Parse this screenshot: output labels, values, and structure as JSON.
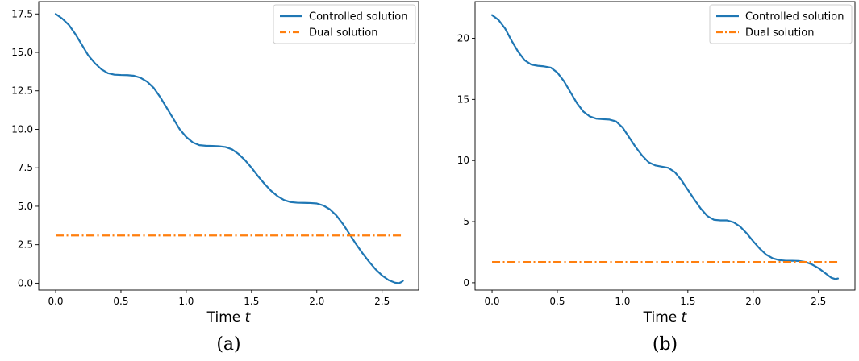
{
  "chart_data": [
    {
      "type": "line",
      "caption": "(a)",
      "xlabel": "Time",
      "xlabel_var": "t",
      "ylabel": "",
      "xlim": [
        -0.13,
        2.78
      ],
      "ylim": [
        -0.45,
        18.3
      ],
      "xticks": [
        0.0,
        0.5,
        1.0,
        1.5,
        2.0,
        2.5
      ],
      "xtick_labels": [
        "0.0",
        "0.5",
        "1.0",
        "1.5",
        "2.0",
        "2.5"
      ],
      "yticks": [
        0.0,
        2.5,
        5.0,
        7.5,
        10.0,
        12.5,
        15.0,
        17.5
      ],
      "ytick_labels": [
        "0.0",
        "2.5",
        "5.0",
        "7.5",
        "10.0",
        "12.5",
        "15.0",
        "17.5"
      ],
      "legend_position": "top-right",
      "grid": false,
      "series": [
        {
          "name": "Controlled solution",
          "color": "#1f77b4",
          "style": "solid",
          "x": [
            0.0,
            0.05,
            0.1,
            0.15,
            0.2,
            0.25,
            0.3,
            0.35,
            0.4,
            0.45,
            0.5,
            0.55,
            0.6,
            0.65,
            0.7,
            0.75,
            0.8,
            0.85,
            0.9,
            0.95,
            1.0,
            1.05,
            1.1,
            1.15,
            1.2,
            1.25,
            1.3,
            1.35,
            1.4,
            1.45,
            1.5,
            1.55,
            1.6,
            1.65,
            1.7,
            1.75,
            1.8,
            1.85,
            1.9,
            1.95,
            2.0,
            2.05,
            2.1,
            2.15,
            2.2,
            2.25,
            2.3,
            2.35,
            2.4,
            2.45,
            2.5,
            2.55,
            2.6,
            2.63,
            2.65,
            2.66
          ],
          "y": [
            17.5,
            17.2,
            16.8,
            16.2,
            15.5,
            14.8,
            14.3,
            13.9,
            13.65,
            13.55,
            13.53,
            13.52,
            13.48,
            13.35,
            13.1,
            12.7,
            12.1,
            11.4,
            10.7,
            10.0,
            9.5,
            9.15,
            8.97,
            8.93,
            8.92,
            8.9,
            8.85,
            8.7,
            8.4,
            8.0,
            7.5,
            6.95,
            6.45,
            6.0,
            5.65,
            5.4,
            5.27,
            5.23,
            5.22,
            5.21,
            5.18,
            5.05,
            4.8,
            4.4,
            3.85,
            3.2,
            2.55,
            1.95,
            1.4,
            0.9,
            0.5,
            0.2,
            0.03,
            0.0,
            0.08,
            0.15
          ]
        },
        {
          "name": "Dual solution",
          "color": "#ff7f0e",
          "style": "dashdot",
          "x": [
            0.0,
            2.65
          ],
          "y": [
            3.1,
            3.1
          ]
        }
      ]
    },
    {
      "type": "line",
      "caption": "(b)",
      "xlabel": "Time",
      "xlabel_var": "t",
      "ylabel": "",
      "xlim": [
        -0.13,
        2.78
      ],
      "ylim": [
        -0.6,
        23.0
      ],
      "xticks": [
        0.0,
        0.5,
        1.0,
        1.5,
        2.0,
        2.5
      ],
      "xtick_labels": [
        "0.0",
        "0.5",
        "1.0",
        "1.5",
        "2.0",
        "2.5"
      ],
      "yticks": [
        0,
        5,
        10,
        15,
        20
      ],
      "ytick_labels": [
        "0",
        "5",
        "10",
        "15",
        "20"
      ],
      "legend_position": "top-right",
      "grid": false,
      "series": [
        {
          "name": "Controlled solution",
          "color": "#1f77b4",
          "style": "solid",
          "x": [
            0.0,
            0.05,
            0.1,
            0.15,
            0.2,
            0.25,
            0.3,
            0.35,
            0.4,
            0.45,
            0.5,
            0.55,
            0.6,
            0.65,
            0.7,
            0.75,
            0.8,
            0.85,
            0.9,
            0.95,
            1.0,
            1.05,
            1.1,
            1.15,
            1.2,
            1.25,
            1.3,
            1.35,
            1.4,
            1.45,
            1.5,
            1.55,
            1.6,
            1.65,
            1.7,
            1.75,
            1.8,
            1.85,
            1.9,
            1.95,
            2.0,
            2.05,
            2.1,
            2.15,
            2.2,
            2.25,
            2.3,
            2.35,
            2.4,
            2.45,
            2.5,
            2.55,
            2.6,
            2.63,
            2.65
          ],
          "y": [
            21.9,
            21.5,
            20.8,
            19.8,
            18.9,
            18.2,
            17.85,
            17.75,
            17.7,
            17.6,
            17.2,
            16.5,
            15.6,
            14.7,
            14.0,
            13.6,
            13.42,
            13.38,
            13.35,
            13.2,
            12.7,
            11.9,
            11.1,
            10.4,
            9.85,
            9.6,
            9.5,
            9.4,
            9.05,
            8.4,
            7.6,
            6.8,
            6.05,
            5.45,
            5.15,
            5.1,
            5.1,
            4.95,
            4.6,
            4.05,
            3.4,
            2.8,
            2.3,
            2.0,
            1.85,
            1.8,
            1.8,
            1.78,
            1.7,
            1.5,
            1.2,
            0.8,
            0.4,
            0.3,
            0.35
          ]
        },
        {
          "name": "Dual solution",
          "color": "#ff7f0e",
          "style": "dashdot",
          "x": [
            0.0,
            2.65
          ],
          "y": [
            1.7,
            1.7
          ]
        }
      ]
    }
  ]
}
